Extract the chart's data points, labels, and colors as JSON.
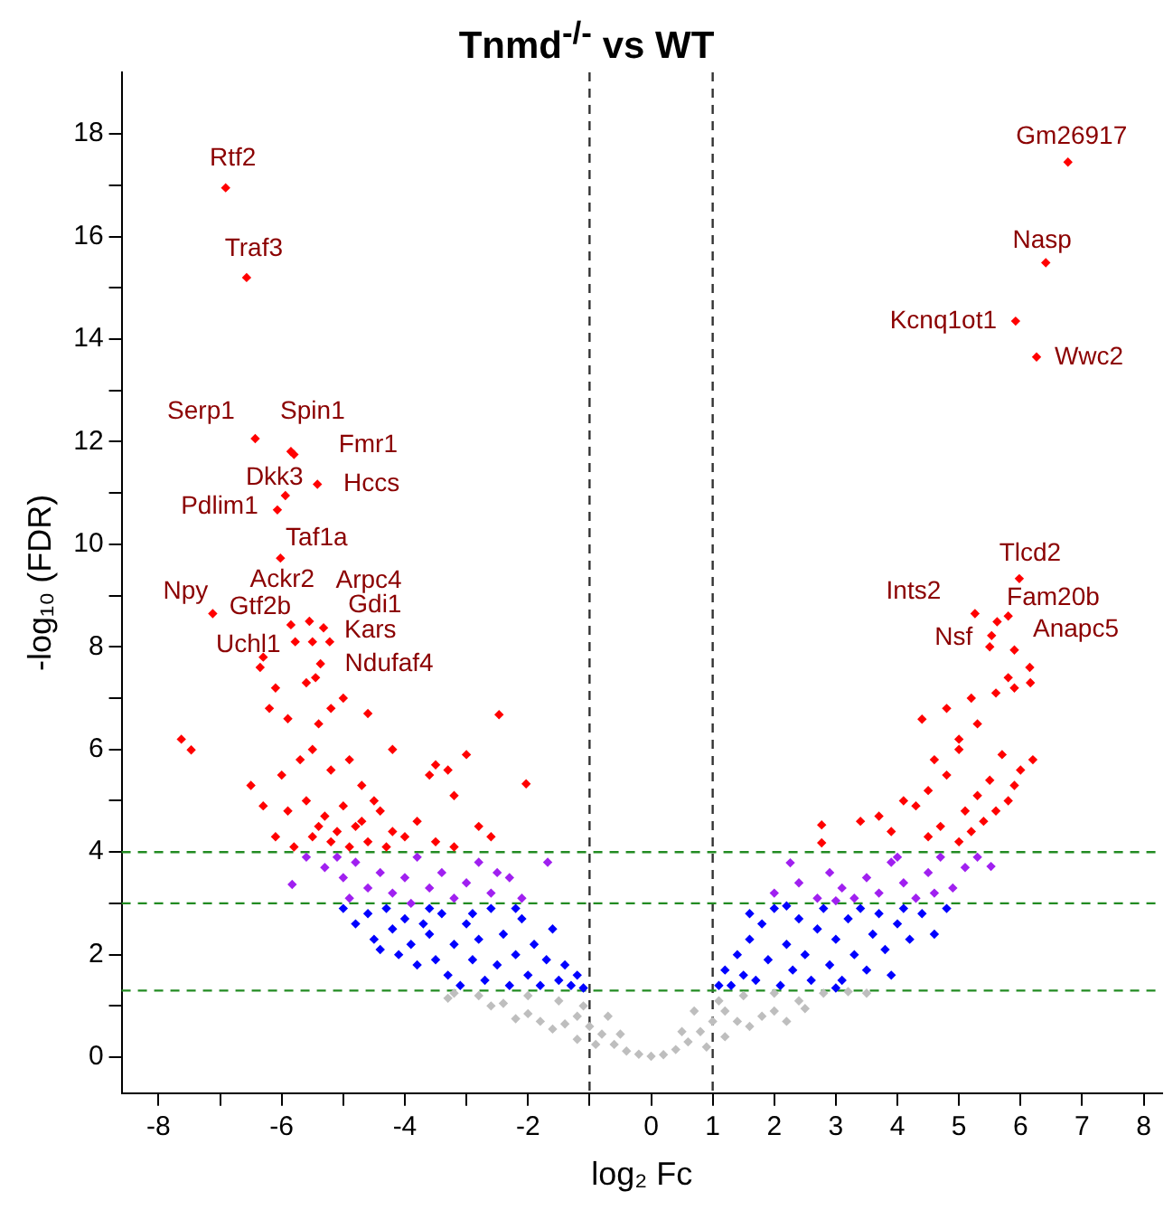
{
  "chart_data": {
    "type": "scatter",
    "title": "Tnmd$^{-/-}$ vs WT",
    "xlabel": "log₂ Fc",
    "ylabel": "-log₁₀ (FDR)",
    "xlim": [
      -8.6,
      8.3
    ],
    "ylim": [
      -0.7,
      19.2
    ],
    "xticks": [
      -8,
      {
        "value": -7,
        "label": null
      },
      -6,
      {
        "value": -5,
        "label": null
      },
      -4,
      {
        "value": -3,
        "label": null
      },
      -2,
      {
        "value": -1,
        "label": null
      },
      0,
      1,
      2,
      3,
      4,
      5,
      6,
      7,
      8
    ],
    "yticks": [
      0,
      {
        "value": 1,
        "label": null
      },
      2,
      {
        "value": 3,
        "label": null
      },
      4,
      {
        "value": 5,
        "label": null
      },
      6,
      {
        "value": 7,
        "label": null
      },
      8,
      {
        "value": 9,
        "label": null
      },
      10,
      {
        "value": 11,
        "label": null
      },
      12,
      {
        "value": 13,
        "label": null
      },
      14,
      {
        "value": 15,
        "label": null
      },
      16,
      {
        "value": 17,
        "label": null
      },
      18
    ],
    "grid": false,
    "legend": false,
    "marker": "diamond",
    "series": [
      {
        "color": "#ff0000",
        "x": [
          -6.91,
          -6.57,
          -6.43,
          -5.85,
          -5.8,
          -5.94,
          -5.42,
          -6.07,
          -6.02,
          -7.12,
          -5.55,
          -5.85,
          -5.32,
          -5.22,
          -5.78,
          -5.5,
          -5.37,
          6.77,
          6.41,
          5.92,
          6.26,
          5.98,
          5.26,
          5.62,
          5.53,
          5.9,
          -7.63,
          -7.47,
          -2.47,
          -2.03,
          -6.3,
          -6.35,
          -6.1,
          -5.6,
          -5.45,
          -5.0,
          -6.2,
          -5.9,
          -5.4,
          -5.2,
          -4.6,
          -4.2,
          -3.5,
          -3.3,
          -3.6,
          -3.0,
          -3.2,
          -6.5,
          -6.0,
          -5.7,
          -5.5,
          -5.2,
          -4.9,
          -4.7,
          -4.5,
          -5.9,
          -5.6,
          -5.3,
          -5.0,
          -4.8,
          -4.4,
          -4.2,
          -6.1,
          -5.8,
          -5.5,
          -5.2,
          -4.9,
          -4.6,
          -4.3,
          -4.0,
          -3.8,
          -3.5,
          -3.2,
          -2.8,
          -2.6,
          -6.3,
          -5.4,
          -5.1,
          -4.7,
          2.77,
          2.77,
          4.4,
          6.16,
          6.15,
          3.4,
          3.7,
          4.1,
          4.3,
          3.9,
          4.5,
          4.7,
          5.0,
          5.2,
          5.4,
          5.6,
          5.8,
          5.9,
          6.0,
          5.7,
          5.5,
          5.3,
          5.1,
          4.8,
          4.6,
          5.0,
          5.3,
          4.8,
          5.6,
          5.8,
          5.2,
          5.9,
          5.5,
          5.8,
          5.0,
          4.5,
          6.2
        ],
        "values": [
          16.95,
          15.2,
          12.06,
          11.81,
          11.75,
          10.95,
          11.17,
          10.67,
          9.73,
          8.65,
          8.5,
          8.43,
          8.37,
          8.1,
          8.1,
          8.1,
          7.67,
          17.45,
          15.49,
          14.35,
          13.65,
          9.33,
          8.65,
          8.49,
          8.22,
          7.94,
          6.2,
          5.99,
          6.68,
          5.33,
          7.8,
          7.6,
          7.2,
          7.3,
          7.4,
          7.0,
          6.8,
          6.6,
          6.5,
          6.8,
          6.7,
          6.0,
          5.7,
          5.6,
          5.5,
          5.9,
          5.1,
          5.3,
          5.5,
          5.8,
          6.0,
          5.6,
          5.8,
          5.3,
          5.0,
          4.8,
          5.0,
          4.7,
          4.9,
          4.5,
          4.8,
          4.4,
          4.3,
          4.1,
          4.3,
          4.2,
          4.1,
          4.2,
          4.1,
          4.3,
          4.6,
          4.2,
          4.1,
          4.5,
          4.3,
          4.9,
          4.5,
          4.4,
          4.6,
          4.53,
          4.18,
          6.59,
          7.3,
          7.6,
          4.6,
          4.7,
          5.0,
          4.9,
          4.4,
          4.3,
          4.5,
          4.2,
          4.4,
          4.6,
          4.8,
          5.0,
          5.3,
          5.6,
          5.9,
          5.4,
          5.1,
          4.8,
          5.5,
          5.8,
          6.2,
          6.5,
          6.8,
          7.1,
          7.4,
          7.0,
          7.2,
          8.0,
          8.6,
          6.0,
          5.2,
          5.8
        ]
      },
      {
        "color": "#a020f0",
        "x": [
          -5.83,
          -1.68,
          -5.6,
          -5.3,
          -5.0,
          -4.8,
          -4.6,
          -4.4,
          -4.2,
          -4.0,
          -3.8,
          -3.6,
          -3.4,
          -3.2,
          -3.0,
          -2.8,
          -2.6,
          -2.3,
          -2.1,
          -4.9,
          -5.1,
          -3.9,
          -2.5,
          5.52,
          2.26,
          2.0,
          2.4,
          2.7,
          2.9,
          3.1,
          3.3,
          3.5,
          3.7,
          3.9,
          4.1,
          4.3,
          4.5,
          4.7,
          4.9,
          5.1,
          5.3,
          3.0,
          4.0,
          4.6
        ],
        "values": [
          3.37,
          3.8,
          3.9,
          3.7,
          3.5,
          3.8,
          3.3,
          3.6,
          3.2,
          3.5,
          3.9,
          3.3,
          3.6,
          3.1,
          3.4,
          3.8,
          3.2,
          3.5,
          3.1,
          3.1,
          3.9,
          3.0,
          3.6,
          3.72,
          3.79,
          3.2,
          3.4,
          3.1,
          3.6,
          3.3,
          3.1,
          3.5,
          3.2,
          3.8,
          3.4,
          3.1,
          3.6,
          3.9,
          3.3,
          3.7,
          3.9,
          3.05,
          3.9,
          3.2
        ]
      },
      {
        "color": "#0000ff",
        "x": [
          -5.0,
          -4.8,
          -4.6,
          -4.5,
          -4.3,
          -4.2,
          -4.1,
          -4.0,
          -3.9,
          -3.8,
          -3.7,
          -3.6,
          -3.5,
          -3.4,
          -3.3,
          -3.2,
          -3.1,
          -3.0,
          -2.9,
          -2.8,
          -2.7,
          -2.6,
          -2.5,
          -2.4,
          -2.3,
          -2.2,
          -2.1,
          -2.0,
          -1.9,
          -1.8,
          -1.7,
          -1.6,
          -1.5,
          -1.4,
          -1.3,
          -1.2,
          -1.1,
          -3.6,
          -2.9,
          -2.2,
          -4.4,
          1.1,
          1.2,
          1.3,
          1.4,
          1.5,
          1.6,
          1.7,
          1.8,
          1.9,
          2.0,
          2.1,
          2.2,
          2.3,
          2.4,
          2.5,
          2.6,
          2.7,
          2.8,
          2.9,
          3.0,
          3.1,
          3.2,
          3.3,
          3.4,
          3.5,
          3.6,
          3.7,
          3.8,
          3.9,
          4.0,
          4.1,
          4.2,
          4.4,
          4.6,
          4.8,
          1.6,
          2.2,
          3.0
        ],
        "values": [
          2.9,
          2.6,
          2.8,
          2.3,
          2.9,
          2.5,
          2.0,
          2.7,
          2.2,
          1.8,
          2.6,
          2.4,
          1.9,
          2.8,
          1.6,
          2.2,
          1.4,
          2.6,
          1.9,
          2.3,
          1.5,
          2.9,
          1.8,
          2.4,
          1.4,
          2.0,
          2.7,
          1.6,
          2.2,
          1.4,
          1.9,
          2.5,
          1.5,
          1.8,
          1.4,
          1.6,
          1.35,
          2.9,
          2.8,
          2.9,
          2.1,
          1.4,
          1.7,
          1.4,
          2.0,
          1.6,
          2.3,
          1.5,
          2.6,
          1.9,
          2.9,
          1.4,
          2.2,
          1.7,
          2.7,
          2.0,
          1.5,
          2.5,
          2.9,
          1.8,
          2.3,
          1.5,
          2.7,
          2.0,
          2.9,
          1.7,
          2.4,
          2.8,
          2.1,
          1.6,
          2.6,
          2.9,
          2.3,
          2.8,
          2.4,
          2.9,
          2.8,
          2.95,
          1.35
        ]
      },
      {
        "color": "#bebebe",
        "x": [
          0,
          0.2,
          -0.2,
          0.4,
          -0.4,
          0.6,
          -0.6,
          0.8,
          -0.8,
          1.0,
          -1.0,
          1.2,
          -1.2,
          1.5,
          -1.5,
          1.2,
          -1.2,
          1.6,
          -1.6,
          2.0,
          -2.0,
          2.0,
          -2.0,
          2.4,
          -2.4,
          2.8,
          -2.8,
          3.2,
          -3.2,
          2.5,
          -2.6,
          1.8,
          -1.8,
          0.9,
          -0.9,
          1.4,
          -1.4,
          3.5,
          -3.3,
          1.1,
          -1.1,
          0.7,
          -0.7,
          0.5,
          -0.5,
          2.2,
          -2.2
        ],
        "values": [
          0.02,
          0.05,
          0.06,
          0.15,
          0.12,
          0.3,
          0.25,
          0.5,
          0.45,
          0.7,
          0.6,
          0.9,
          0.8,
          1.2,
          1.1,
          0.4,
          0.35,
          0.6,
          0.55,
          0.9,
          0.85,
          1.25,
          1.2,
          1.1,
          1.05,
          1.25,
          1.2,
          1.28,
          1.25,
          0.95,
          1.0,
          0.8,
          0.7,
          0.2,
          0.25,
          0.7,
          0.65,
          1.25,
          1.15,
          1.1,
          1.0,
          0.9,
          0.8,
          0.5,
          0.45,
          0.7,
          0.75
        ]
      }
    ],
    "ref_lines": [
      {
        "axis": "x",
        "value": -1,
        "color": "#333333",
        "line_style": "dashed"
      },
      {
        "axis": "x",
        "value": 1,
        "color": "#333333",
        "line_style": "dashed"
      },
      {
        "axis": "y",
        "value": 4,
        "color": "#228b22",
        "line_style": "dashed"
      },
      {
        "axis": "y",
        "value": 3,
        "color": "#228b22",
        "line_style": "dashed"
      },
      {
        "axis": "y",
        "value": 1.3,
        "color": "#228b22",
        "line_style": "dashed"
      }
    ],
    "annotations": [
      {
        "text": "Rtf2",
        "x": -6.91,
        "y": 16.95
      },
      {
        "text": "Traf3",
        "x": -6.57,
        "y": 15.2
      },
      {
        "text": "Serp1",
        "x": -6.43,
        "y": 12.06
      },
      {
        "text": "Spin1",
        "x": -5.85,
        "y": 11.81
      },
      {
        "text": "Fmr1",
        "x": -5.8,
        "y": 11.75
      },
      {
        "text": "Dkk3",
        "x": -5.94,
        "y": 10.95
      },
      {
        "text": "Hccs",
        "x": -5.42,
        "y": 11.17
      },
      {
        "text": "Pdlim1",
        "x": -6.07,
        "y": 10.67
      },
      {
        "text": "Taf1a",
        "x": -6.02,
        "y": 9.73
      },
      {
        "text": "Npy",
        "x": -7.12,
        "y": 8.65
      },
      {
        "text": "Ackr2",
        "x": -5.55,
        "y": 8.5
      },
      {
        "text": "Gtf2b",
        "x": -5.85,
        "y": 8.43
      },
      {
        "text": "Arpc4",
        "x": -5.32,
        "y": 8.37
      },
      {
        "text": "Gdi1",
        "x": -5.22,
        "y": 8.1
      },
      {
        "text": "Uchl1",
        "x": -5.78,
        "y": 8.1
      },
      {
        "text": "Kars",
        "x": -5.5,
        "y": 8.1
      },
      {
        "text": "Ndufaf4",
        "x": -5.37,
        "y": 7.67
      },
      {
        "text": "Gm26917",
        "x": 6.77,
        "y": 17.45
      },
      {
        "text": "Nasp",
        "x": 6.41,
        "y": 15.49
      },
      {
        "text": "Kcnq1ot1",
        "x": 5.92,
        "y": 14.35
      },
      {
        "text": "Wwc2",
        "x": 6.26,
        "y": 13.65
      },
      {
        "text": "Tlcd2",
        "x": 5.98,
        "y": 9.33
      },
      {
        "text": "Ints2",
        "x": 5.26,
        "y": 8.65
      },
      {
        "text": "Fam20b",
        "x": 5.62,
        "y": 8.49
      },
      {
        "text": "Nsf",
        "x": 5.53,
        "y": 8.22
      },
      {
        "text": "Anapc5",
        "x": 5.9,
        "y": 7.94
      }
    ]
  }
}
